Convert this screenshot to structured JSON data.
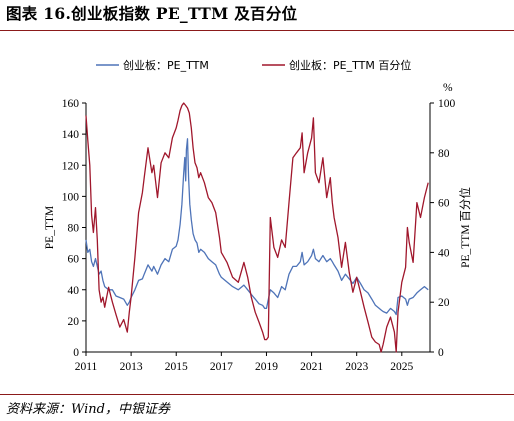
{
  "page": {
    "title": "图表 16.创业板指数 PE_TTM 及百分位",
    "source": "资料来源：Wind，中银证券"
  },
  "chart_data": {
    "type": "line",
    "title": "图表 16.创业板指数 PE_TTM 及百分位",
    "xlabel": "",
    "ylabel": "PE_TTM",
    "y2label": "PE_TTM 百分位",
    "y2unit": "%",
    "xlim": [
      2011.0,
      2026.25
    ],
    "ylim": [
      0,
      160
    ],
    "y2lim": [
      0,
      100
    ],
    "xticks": [
      "2011",
      "2013",
      "2015",
      "2017",
      "2019",
      "2021",
      "2023",
      "2025"
    ],
    "yticks": [
      "0",
      "20",
      "40",
      "60",
      "80",
      "100",
      "120",
      "140",
      "160"
    ],
    "y2ticks": [
      "0",
      "20",
      "40",
      "60",
      "80",
      "100"
    ],
    "legend_position": "top",
    "grid": false,
    "series": [
      {
        "name": "创业板：PE_TTM",
        "axis": "left",
        "color": "#4f74b8",
        "x": [
          2011.0,
          2011.08,
          2011.17,
          2011.25,
          2011.33,
          2011.42,
          2011.5,
          2011.58,
          2011.67,
          2011.75,
          2011.83,
          2012.0,
          2012.17,
          2012.33,
          2012.5,
          2012.67,
          2012.83,
          2012.92,
          2013.0,
          2013.17,
          2013.33,
          2013.5,
          2013.58,
          2013.75,
          2013.92,
          2014.0,
          2014.17,
          2014.33,
          2014.5,
          2014.67,
          2014.83,
          2015.0,
          2015.08,
          2015.17,
          2015.25,
          2015.33,
          2015.38,
          2015.42,
          2015.45,
          2015.5,
          2015.55,
          2015.6,
          2015.67,
          2015.75,
          2015.83,
          2015.92,
          2016.0,
          2016.08,
          2016.25,
          2016.42,
          2016.58,
          2016.75,
          2016.92,
          2017.0,
          2017.25,
          2017.5,
          2017.75,
          2018.0,
          2018.17,
          2018.33,
          2018.5,
          2018.67,
          2018.83,
          2018.92,
          2019.0,
          2019.17,
          2019.33,
          2019.5,
          2019.67,
          2019.83,
          2020.0,
          2020.17,
          2020.33,
          2020.5,
          2020.58,
          2020.67,
          2020.83,
          2021.0,
          2021.08,
          2021.17,
          2021.33,
          2021.5,
          2021.67,
          2021.83,
          2021.92,
          2022.0,
          2022.17,
          2022.33,
          2022.5,
          2022.67,
          2022.83,
          2023.0,
          2023.17,
          2023.33,
          2023.5,
          2023.67,
          2023.83,
          2024.0,
          2024.08,
          2024.17,
          2024.33,
          2024.5,
          2024.67,
          2024.75,
          2024.83,
          2025.0,
          2025.17,
          2025.25,
          2025.33,
          2025.5,
          2025.67,
          2025.83,
          2026.0,
          2026.17
        ],
        "y": [
          72,
          64,
          66,
          58,
          55,
          60,
          55,
          50,
          52,
          46,
          42,
          40,
          40,
          36,
          35,
          34,
          30,
          32,
          35,
          40,
          46,
          47,
          50,
          56,
          52,
          55,
          50,
          56,
          60,
          58,
          66,
          68,
          72,
          82,
          95,
          115,
          125,
          110,
          130,
          137,
          112,
          95,
          85,
          76,
          72,
          70,
          64,
          66,
          64,
          60,
          58,
          56,
          50,
          48,
          45,
          42,
          40,
          43,
          40,
          37,
          34,
          31,
          30,
          28,
          28,
          40,
          38,
          35,
          42,
          40,
          50,
          55,
          55,
          58,
          64,
          56,
          58,
          62,
          66,
          60,
          58,
          62,
          58,
          60,
          58,
          56,
          52,
          46,
          50,
          47,
          44,
          48,
          44,
          40,
          38,
          34,
          30,
          28,
          27,
          26,
          25,
          28,
          26,
          24,
          35,
          36,
          34,
          30,
          34,
          35,
          38,
          40,
          42,
          40
        ]
      },
      {
        "name": "创业板：PE_TTM 百分位",
        "axis": "right",
        "color": "#a0172c",
        "x": [
          2011.0,
          2011.08,
          2011.17,
          2011.25,
          2011.33,
          2011.42,
          2011.5,
          2011.58,
          2011.67,
          2011.75,
          2011.83,
          2012.0,
          2012.17,
          2012.33,
          2012.5,
          2012.67,
          2012.83,
          2012.92,
          2013.0,
          2013.17,
          2013.33,
          2013.5,
          2013.58,
          2013.75,
          2013.92,
          2014.0,
          2014.17,
          2014.33,
          2014.5,
          2014.67,
          2014.83,
          2015.0,
          2015.08,
          2015.17,
          2015.25,
          2015.33,
          2015.42,
          2015.5,
          2015.58,
          2015.67,
          2015.75,
          2015.83,
          2015.92,
          2016.0,
          2016.08,
          2016.25,
          2016.42,
          2016.58,
          2016.75,
          2016.92,
          2017.0,
          2017.25,
          2017.5,
          2017.75,
          2018.0,
          2018.17,
          2018.33,
          2018.5,
          2018.67,
          2018.83,
          2018.92,
          2019.0,
          2019.08,
          2019.17,
          2019.33,
          2019.5,
          2019.67,
          2019.83,
          2020.0,
          2020.17,
          2020.33,
          2020.5,
          2020.58,
          2020.67,
          2020.83,
          2021.0,
          2021.08,
          2021.17,
          2021.33,
          2021.5,
          2021.67,
          2021.83,
          2021.92,
          2022.0,
          2022.17,
          2022.33,
          2022.5,
          2022.67,
          2022.83,
          2023.0,
          2023.17,
          2023.33,
          2023.5,
          2023.67,
          2023.83,
          2024.0,
          2024.08,
          2024.17,
          2024.33,
          2024.5,
          2024.67,
          2024.75,
          2024.83,
          2025.0,
          2025.17,
          2025.25,
          2025.33,
          2025.5,
          2025.67,
          2025.83,
          2026.0,
          2026.17
        ],
        "y": [
          95,
          85,
          75,
          55,
          48,
          58,
          45,
          25,
          20,
          22,
          18,
          26,
          20,
          15,
          10,
          13,
          8,
          16,
          22,
          38,
          56,
          64,
          70,
          82,
          72,
          75,
          62,
          76,
          80,
          78,
          86,
          90,
          93,
          97,
          99,
          100,
          99,
          98,
          96,
          90,
          82,
          76,
          74,
          70,
          72,
          68,
          62,
          60,
          56,
          46,
          40,
          36,
          30,
          28,
          36,
          30,
          22,
          16,
          12,
          8,
          5,
          5,
          6,
          54,
          42,
          38,
          45,
          42,
          60,
          78,
          80,
          82,
          88,
          72,
          80,
          86,
          94,
          72,
          68,
          78,
          62,
          70,
          60,
          54,
          46,
          34,
          44,
          32,
          24,
          30,
          24,
          18,
          12,
          6,
          4,
          3,
          0,
          3,
          10,
          14,
          8,
          0,
          16,
          28,
          34,
          50,
          44,
          36,
          60,
          54,
          62,
          68
        ]
      }
    ]
  }
}
